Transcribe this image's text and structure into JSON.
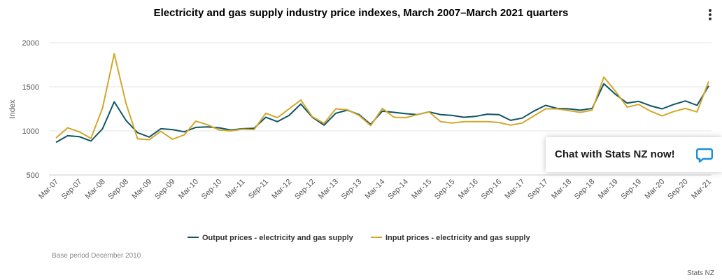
{
  "chart_data": {
    "type": "line",
    "title": "Electricity and gas supply industry price indexes, March 2007–March 2021 quarters",
    "ylabel": "Index",
    "xlabel": "",
    "ylim": [
      500,
      2000
    ],
    "yticks": [
      500,
      1000,
      1500,
      2000
    ],
    "x": [
      "Mar-07",
      "Jun-07",
      "Sep-07",
      "Dec-07",
      "Mar-08",
      "Jun-08",
      "Sep-08",
      "Dec-08",
      "Mar-09",
      "Jun-09",
      "Sep-09",
      "Dec-09",
      "Mar-10",
      "Jun-10",
      "Sep-10",
      "Dec-10",
      "Mar-11",
      "Jun-11",
      "Sep-11",
      "Dec-11",
      "Mar-12",
      "Jun-12",
      "Sep-12",
      "Dec-12",
      "Mar-13",
      "Jun-13",
      "Sep-13",
      "Dec-13",
      "Mar-14",
      "Jun-14",
      "Sep-14",
      "Dec-14",
      "Mar-15",
      "Jun-15",
      "Sep-15",
      "Dec-15",
      "Mar-16",
      "Jun-16",
      "Sep-16",
      "Dec-16",
      "Mar-17",
      "Jun-17",
      "Sep-17",
      "Dec-17",
      "Mar-18",
      "Jun-18",
      "Sep-18",
      "Dec-18",
      "Mar-19",
      "Jun-19",
      "Sep-19",
      "Dec-19",
      "Mar-20",
      "Jun-20",
      "Sep-20",
      "Dec-20",
      "Mar-21"
    ],
    "xtick_labels": [
      "Mar-07",
      "Sep-07",
      "Mar-08",
      "Sep-08",
      "Mar-09",
      "Sep-09",
      "Mar-10",
      "Sep-10",
      "Mar-11",
      "Sep-11",
      "Mar-12",
      "Sep-12",
      "Mar-13",
      "Sep-13",
      "Mar-14",
      "Sep-14",
      "Mar-15",
      "Sep-15",
      "Mar-16",
      "Sep-16",
      "Mar-17",
      "Sep-17",
      "Mar-18",
      "Sep-18",
      "Mar-19",
      "Sep-19",
      "Mar-20",
      "Sep-20",
      "Mar-21"
    ],
    "grid": true,
    "legend_position": "bottom-center",
    "series": [
      {
        "name": "Output prices - electricity and gas supply",
        "color": "#0f5563",
        "values": [
          870,
          945,
          935,
          885,
          1025,
          1330,
          1120,
          980,
          930,
          1025,
          1015,
          990,
          1040,
          1045,
          1035,
          1010,
          1025,
          1030,
          1155,
          1105,
          1175,
          1305,
          1155,
          1065,
          1200,
          1235,
          1185,
          1075,
          1225,
          1210,
          1195,
          1185,
          1215,
          1185,
          1175,
          1155,
          1165,
          1190,
          1185,
          1120,
          1145,
          1225,
          1290,
          1255,
          1250,
          1235,
          1255,
          1535,
          1415,
          1315,
          1335,
          1285,
          1250,
          1300,
          1340,
          1290,
          1510
        ]
      },
      {
        "name": "Input prices - electricity and gas supply",
        "color": "#d2a72a",
        "values": [
          920,
          1035,
          990,
          915,
          1260,
          1875,
          1315,
          910,
          900,
          995,
          905,
          955,
          1110,
          1070,
          1010,
          1000,
          1020,
          1015,
          1200,
          1150,
          1250,
          1350,
          1160,
          1085,
          1250,
          1240,
          1175,
          1060,
          1255,
          1155,
          1150,
          1185,
          1215,
          1105,
          1090,
          1105,
          1105,
          1105,
          1095,
          1065,
          1090,
          1170,
          1250,
          1250,
          1230,
          1210,
          1235,
          1610,
          1450,
          1270,
          1300,
          1225,
          1170,
          1220,
          1255,
          1215,
          1560
        ]
      }
    ]
  },
  "base_period_note": "Base period December 2010",
  "credit": "Stats NZ",
  "chat": {
    "label": "Chat with Stats NZ now!",
    "icon": "chat-bubble-icon",
    "accent": "#1a8fe0"
  },
  "menu": {
    "icon": "more-vertical-icon"
  }
}
